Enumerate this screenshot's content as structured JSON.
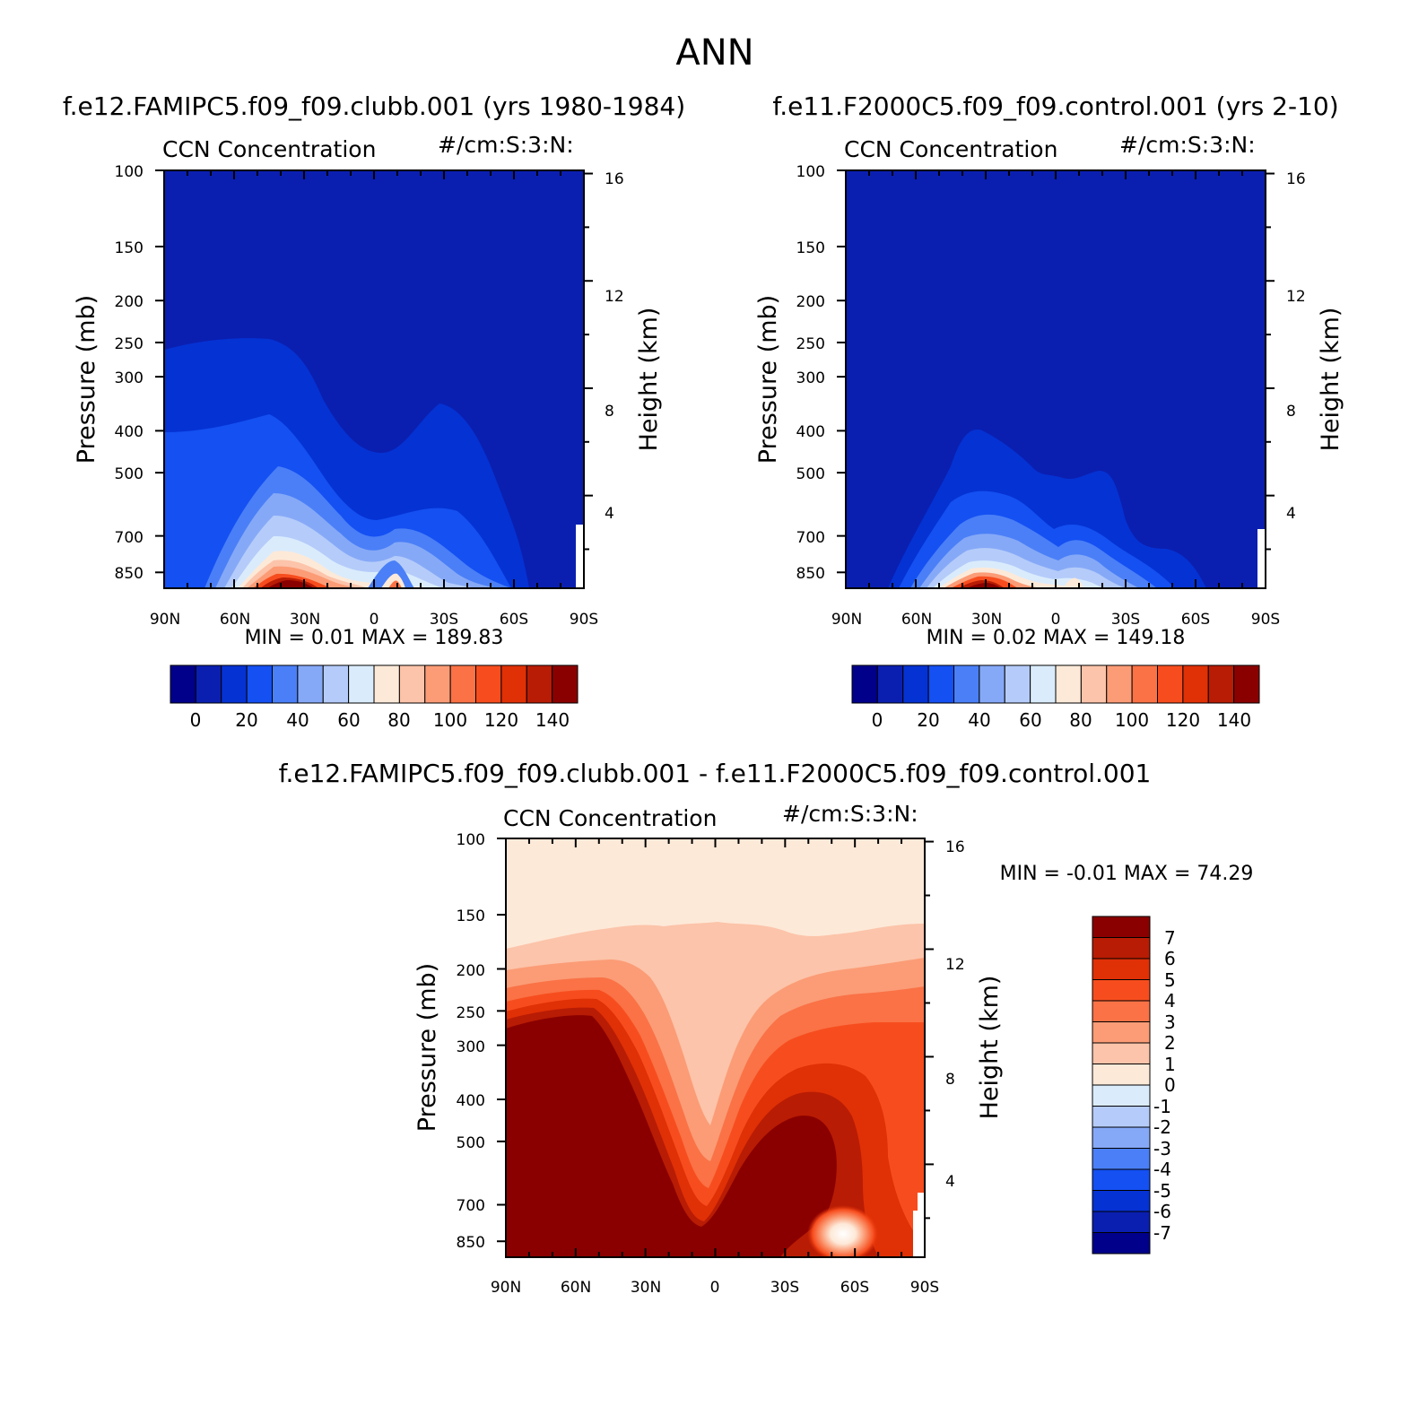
{
  "main_title": "ANN",
  "palette": {
    "blue_red_16": [
      "#00008b",
      "#0a1fb0",
      "#0532d3",
      "#1450f2",
      "#4a7ff7",
      "#86a9f7",
      "#b5ccfa",
      "#daecfc",
      "#fde9d8",
      "#fcc4aa",
      "#fb9c76",
      "#fa7246",
      "#f74d1e",
      "#e03006",
      "#b81c04",
      "#8a0000"
    ]
  },
  "chart_data": [
    {
      "type": "contour",
      "title": "f.e12.FAMIPC5.f09_f09.clubb.001 (yrs 1980-1984)",
      "variable": "CCN Concentration",
      "units": "#/cm:S:3:N:",
      "ylabel": "Pressure (mb)",
      "y2label": "Height (km)",
      "xticks": [
        "90N",
        "60N",
        "30N",
        "0",
        "30S",
        "60S",
        "90S"
      ],
      "yticks": [
        "100",
        "150",
        "200",
        "250",
        "300",
        "400",
        "500",
        "700",
        "850"
      ],
      "y2ticks": [
        "16",
        "12",
        "8",
        "4"
      ],
      "stats_text": "MIN = 0.01 MAX = 189.83",
      "colorbar_labels": [
        "0",
        "20",
        "40",
        "60",
        "80",
        "100",
        "120",
        "140"
      ]
    },
    {
      "type": "contour",
      "title": "f.e11.F2000C5.f09_f09.control.001 (yrs 2-10)",
      "variable": "CCN Concentration",
      "units": "#/cm:S:3:N:",
      "ylabel": "Pressure (mb)",
      "y2label": "Height (km)",
      "xticks": [
        "90N",
        "60N",
        "30N",
        "0",
        "30S",
        "60S",
        "90S"
      ],
      "yticks": [
        "100",
        "150",
        "200",
        "250",
        "300",
        "400",
        "500",
        "700",
        "850"
      ],
      "y2ticks": [
        "16",
        "12",
        "8",
        "4"
      ],
      "stats_text": "MIN = 0.02 MAX = 149.18",
      "colorbar_labels": [
        "0",
        "20",
        "40",
        "60",
        "80",
        "100",
        "120",
        "140"
      ]
    },
    {
      "type": "contour",
      "title": "f.e12.FAMIPC5.f09_f09.clubb.001 - f.e11.F2000C5.f09_f09.control.001",
      "variable": "CCN Concentration",
      "units": "#/cm:S:3:N:",
      "ylabel": "Pressure (mb)",
      "y2label": "Height (km)",
      "xticks": [
        "90N",
        "60N",
        "30N",
        "0",
        "30S",
        "60S",
        "90S"
      ],
      "yticks": [
        "100",
        "150",
        "200",
        "250",
        "300",
        "400",
        "500",
        "700",
        "850"
      ],
      "y2ticks": [
        "16",
        "12",
        "8",
        "4"
      ],
      "stats_text": "MIN = -0.01 MAX = 74.29",
      "colorbar_labels": [
        "7",
        "6",
        "5",
        "4",
        "3",
        "2",
        "1",
        "0",
        "-1",
        "-2",
        "-3",
        "-4",
        "-5",
        "-6",
        "-7"
      ]
    }
  ]
}
